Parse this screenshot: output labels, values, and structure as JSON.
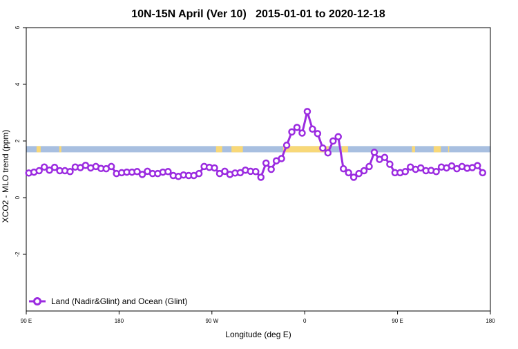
{
  "chart_data": {
    "type": "line",
    "title": "10N-15N April (Ver 10)   2015-01-01 to 2020-12-18",
    "xlabel": "Longitude (deg E)",
    "ylabel": "XCO2 - MLO trend (ppm)",
    "x_ticks": [
      {
        "value": 90,
        "label": "90 E"
      },
      {
        "value": 180,
        "label": "180"
      },
      {
        "value": 270,
        "label": "90 W"
      },
      {
        "value": 360,
        "label": "0"
      },
      {
        "value": 450,
        "label": "90 E"
      },
      {
        "value": 540,
        "label": "180"
      }
    ],
    "y_ticks": [
      {
        "value": -2,
        "label": "-2"
      },
      {
        "value": 0,
        "label": "0"
      },
      {
        "value": 2,
        "label": "2"
      },
      {
        "value": 4,
        "label": "4"
      },
      {
        "value": 6,
        "label": "6"
      }
    ],
    "xlim": [
      90,
      540
    ],
    "ylim": [
      -4,
      6
    ],
    "grid": false,
    "legend_position": "bottom-left",
    "colors": {
      "series": "#9b2be0",
      "ocean_band": "#a8bfe0",
      "land_band": "#f8d878",
      "axis": "#000000"
    },
    "band": {
      "y_range": [
        1.6,
        1.82
      ],
      "land_segments": [
        [
          100,
          104
        ],
        [
          122,
          124
        ],
        [
          274,
          280
        ],
        [
          289,
          300
        ],
        [
          339,
          383
        ],
        [
          396,
          402
        ],
        [
          464,
          467
        ],
        [
          485,
          492
        ],
        [
          499,
          500
        ]
      ]
    },
    "series": [
      {
        "name": "Land (Nadir&Glint) and Ocean (Glint)",
        "x": [
          92.5,
          97.5,
          102.5,
          107.5,
          112.5,
          117.5,
          122.5,
          127.5,
          132.5,
          137.5,
          142.5,
          147.5,
          152.5,
          157.5,
          162.5,
          167.5,
          172.5,
          177.5,
          182.5,
          187.5,
          192.5,
          197.5,
          202.5,
          207.5,
          212.5,
          217.5,
          222.5,
          227.5,
          232.5,
          237.5,
          242.5,
          247.5,
          252.5,
          257.5,
          262.5,
          267.5,
          272.5,
          277.5,
          282.5,
          287.5,
          292.5,
          297.5,
          302.5,
          307.5,
          312.5,
          317.5,
          322.5,
          327.5,
          332.5,
          337.5,
          342.5,
          347.5,
          352.5,
          357.5,
          362.5,
          367.5,
          372.5,
          377.5,
          382.5,
          387.5,
          392.5,
          397.5,
          402.5,
          407.5,
          412.5,
          417.5,
          422.5,
          427.5,
          432.5,
          437.5,
          442.5,
          447.5,
          452.5,
          457.5,
          462.5,
          467.5,
          472.5,
          477.5,
          482.5,
          487.5,
          492.5,
          497.5,
          502.5,
          507.5,
          512.5,
          517.5,
          522.5,
          527.5,
          532.5,
          537.5
        ],
        "y": [
          0.87,
          0.9,
          0.95,
          1.08,
          0.97,
          1.07,
          0.95,
          0.95,
          0.92,
          1.08,
          1.06,
          1.14,
          1.05,
          1.1,
          1.03,
          1.02,
          1.1,
          0.85,
          0.88,
          0.9,
          0.9,
          0.92,
          0.82,
          0.93,
          0.85,
          0.85,
          0.9,
          0.92,
          0.78,
          0.75,
          0.8,
          0.78,
          0.78,
          0.85,
          1.1,
          1.07,
          1.05,
          0.85,
          0.93,
          0.82,
          0.87,
          0.88,
          0.97,
          0.93,
          0.92,
          0.72,
          1.22,
          1.0,
          1.3,
          1.38,
          1.85,
          2.32,
          2.48,
          2.28,
          3.04,
          2.42,
          2.26,
          1.75,
          1.58,
          2.0,
          2.15,
          1.02,
          0.88,
          0.72,
          0.85,
          0.95,
          1.1,
          1.6,
          1.35,
          1.42,
          1.18,
          0.88,
          0.88,
          0.92,
          1.08,
          1.0,
          1.05,
          0.95,
          0.96,
          0.92,
          1.08,
          1.05,
          1.12,
          1.02,
          1.1,
          1.04,
          1.06,
          1.13,
          0.88,
          null
        ]
      }
    ]
  }
}
